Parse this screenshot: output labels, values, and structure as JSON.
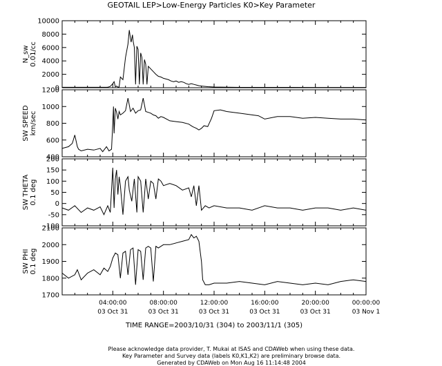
{
  "title": "GEOTAIL  LEP>Low-Energy Particles  K0>Key Parameter",
  "time_range": "TIME RANGE=2003/10/31 (304) to 2003/11/1 (305)",
  "footer": [
    "Please acknowledge data provider, T. Mukai at ISAS and CDAWeb when using these data.",
    "Key Parameter and Survey data (labels K0,K1,K2) are preliminary browse data.",
    "Generated by CDAWeb on Mon Aug 16 11:14:48 2004"
  ],
  "x_ticks": [
    {
      "time": "04:00:00",
      "date": "03 Oct 31"
    },
    {
      "time": "08:00:00",
      "date": "03 Oct 31"
    },
    {
      "time": "12:00:00",
      "date": "03 Oct 31"
    },
    {
      "time": "16:00:00",
      "date": "03 Oct 31"
    },
    {
      "time": "20:00:00",
      "date": "03 Oct 31"
    },
    {
      "time": "00:00:00",
      "date": "03 Nov  1"
    }
  ],
  "chart_data": [
    {
      "type": "line",
      "ylabel": [
        "N_sw",
        "0.01/cc"
      ],
      "xlim": [
        0,
        24
      ],
      "ylim": [
        0,
        10000
      ],
      "yticks": [
        "0",
        "2000",
        "4000",
        "6000",
        "8000",
        "10000"
      ],
      "x": [
        0,
        3.5,
        3.6,
        3.8,
        4.0,
        4.1,
        4.2,
        4.3,
        4.4,
        4.5,
        4.6,
        4.8,
        5.0,
        5.2,
        5.3,
        5.4,
        5.45,
        5.55,
        5.6,
        5.7,
        5.8,
        5.9,
        6.0,
        6.1,
        6.2,
        6.3,
        6.4,
        6.5,
        6.6,
        6.7,
        6.8,
        7.0,
        7.2,
        7.4,
        7.6,
        7.8,
        8.0,
        8.2,
        8.4,
        8.6,
        8.8,
        9.0,
        9.2,
        9.4,
        9.6,
        9.8,
        10.0,
        10.2,
        10.4,
        10.6,
        10.8,
        11.0,
        11.5,
        12.0,
        13.0,
        14.0,
        16.0,
        18.0,
        20.0,
        22.0,
        24.0
      ],
      "values": [
        60,
        60,
        70,
        200,
        600,
        900,
        120,
        250,
        90,
        110,
        1600,
        1200,
        4500,
        6500,
        8600,
        7300,
        6800,
        7900,
        7000,
        6000,
        500,
        6200,
        5700,
        500,
        5200,
        4500,
        500,
        4200,
        3500,
        500,
        3200,
        2800,
        2400,
        2000,
        1700,
        1600,
        1400,
        1300,
        1200,
        1000,
        900,
        1000,
        800,
        900,
        800,
        600,
        500,
        600,
        500,
        400,
        300,
        250,
        150,
        100,
        70,
        50,
        50,
        50,
        40,
        40,
        40
      ]
    },
    {
      "type": "line",
      "ylabel": [
        "SW SPEED",
        "km/sec"
      ],
      "xlim": [
        0,
        24
      ],
      "ylim": [
        400,
        1200
      ],
      "yticks": [
        "400",
        "600",
        "800",
        "1000",
        "1200"
      ],
      "x": [
        0,
        0.5,
        0.8,
        1.0,
        1.2,
        1.3,
        1.5,
        2.0,
        2.5,
        3.0,
        3.2,
        3.5,
        3.7,
        3.9,
        4.0,
        4.05,
        4.1,
        4.2,
        4.3,
        4.4,
        4.5,
        4.6,
        4.8,
        5.0,
        5.2,
        5.4,
        5.6,
        5.8,
        6.0,
        6.2,
        6.4,
        6.6,
        6.8,
        7.0,
        7.2,
        7.4,
        7.6,
        7.8,
        8.0,
        8.5,
        9.0,
        9.5,
        10.0,
        10.3,
        10.6,
        10.8,
        11.0,
        11.2,
        11.5,
        11.8,
        12.0,
        12.5,
        13.0,
        14.0,
        15.0,
        15.5,
        16.0,
        17.0,
        18.0,
        19.0,
        20.0,
        21.0,
        22.0,
        23.0,
        24.0
      ],
      "values": [
        500,
        520,
        560,
        660,
        520,
        490,
        470,
        490,
        480,
        500,
        460,
        520,
        470,
        490,
        800,
        1000,
        680,
        980,
        930,
        850,
        940,
        900,
        920,
        950,
        1100,
        940,
        980,
        920,
        950,
        960,
        1100,
        940,
        930,
        920,
        900,
        890,
        860,
        880,
        870,
        830,
        820,
        810,
        790,
        760,
        740,
        720,
        740,
        770,
        760,
        860,
        950,
        960,
        940,
        920,
        900,
        890,
        850,
        880,
        880,
        860,
        870,
        860,
        850,
        850,
        840
      ]
    },
    {
      "type": "line",
      "ylabel": [
        "SW THETA",
        "0.1 deg"
      ],
      "xlim": [
        0,
        24
      ],
      "ylim": [
        -100,
        200
      ],
      "yticks": [
        "-100",
        "-50",
        "0",
        "50",
        "100",
        "150",
        "200"
      ],
      "x": [
        0,
        0.5,
        1.0,
        1.5,
        2.0,
        2.5,
        3.0,
        3.3,
        3.6,
        3.8,
        4.0,
        4.1,
        4.2,
        4.3,
        4.4,
        4.5,
        4.6,
        4.8,
        5.0,
        5.2,
        5.3,
        5.5,
        5.7,
        5.9,
        6.0,
        6.2,
        6.4,
        6.6,
        6.8,
        7.0,
        7.2,
        7.4,
        7.6,
        7.8,
        8.0,
        8.5,
        9.0,
        9.5,
        10.0,
        10.2,
        10.4,
        10.6,
        10.8,
        11.0,
        11.3,
        11.6,
        12.0,
        13.0,
        14.0,
        15.0,
        16.0,
        17.0,
        18.0,
        19.0,
        20.0,
        21.0,
        22.0,
        23.0,
        24.0
      ],
      "values": [
        -20,
        -30,
        -10,
        -40,
        -20,
        -30,
        -15,
        -50,
        -10,
        -40,
        160,
        -20,
        110,
        150,
        40,
        120,
        80,
        -50,
        100,
        120,
        60,
        10,
        110,
        -40,
        120,
        100,
        -40,
        110,
        20,
        100,
        90,
        20,
        110,
        100,
        80,
        90,
        80,
        60,
        70,
        30,
        80,
        -10,
        80,
        -30,
        -10,
        -20,
        -10,
        -20,
        -20,
        -30,
        -10,
        -20,
        -20,
        -30,
        -20,
        -20,
        -30,
        -20,
        -30
      ]
    },
    {
      "type": "line",
      "ylabel": [
        "SW PHI",
        "0.1 deg"
      ],
      "xlim": [
        0,
        24
      ],
      "ylim": [
        1700,
        2100
      ],
      "yticks": [
        "1700",
        "1800",
        "1900",
        "2000",
        "2100"
      ],
      "x": [
        0,
        0.5,
        1.0,
        1.2,
        1.5,
        2.0,
        2.5,
        3.0,
        3.3,
        3.6,
        3.8,
        4.0,
        4.2,
        4.4,
        4.6,
        4.8,
        5.0,
        5.2,
        5.4,
        5.6,
        5.8,
        6.0,
        6.2,
        6.4,
        6.6,
        6.8,
        7.0,
        7.2,
        7.4,
        7.6,
        7.8,
        8.0,
        8.5,
        9.0,
        9.5,
        10.0,
        10.2,
        10.4,
        10.6,
        10.8,
        11.0,
        11.1,
        11.3,
        11.6,
        12.0,
        13.0,
        14.0,
        15.0,
        16.0,
        17.0,
        18.0,
        19.0,
        20.0,
        21.0,
        22.0,
        23.0,
        24.0
      ],
      "values": [
        1830,
        1800,
        1820,
        1850,
        1790,
        1830,
        1850,
        1820,
        1860,
        1840,
        1870,
        1920,
        1950,
        1940,
        1800,
        1950,
        1960,
        1820,
        1970,
        1980,
        1760,
        1970,
        1960,
        1790,
        1980,
        1990,
        1980,
        1780,
        1990,
        1980,
        1990,
        2000,
        2000,
        2010,
        2020,
        2030,
        2060,
        2040,
        2050,
        2020,
        1900,
        1790,
        1760,
        1760,
        1770,
        1770,
        1780,
        1770,
        1760,
        1780,
        1770,
        1760,
        1770,
        1760,
        1780,
        1790,
        1780
      ]
    }
  ]
}
